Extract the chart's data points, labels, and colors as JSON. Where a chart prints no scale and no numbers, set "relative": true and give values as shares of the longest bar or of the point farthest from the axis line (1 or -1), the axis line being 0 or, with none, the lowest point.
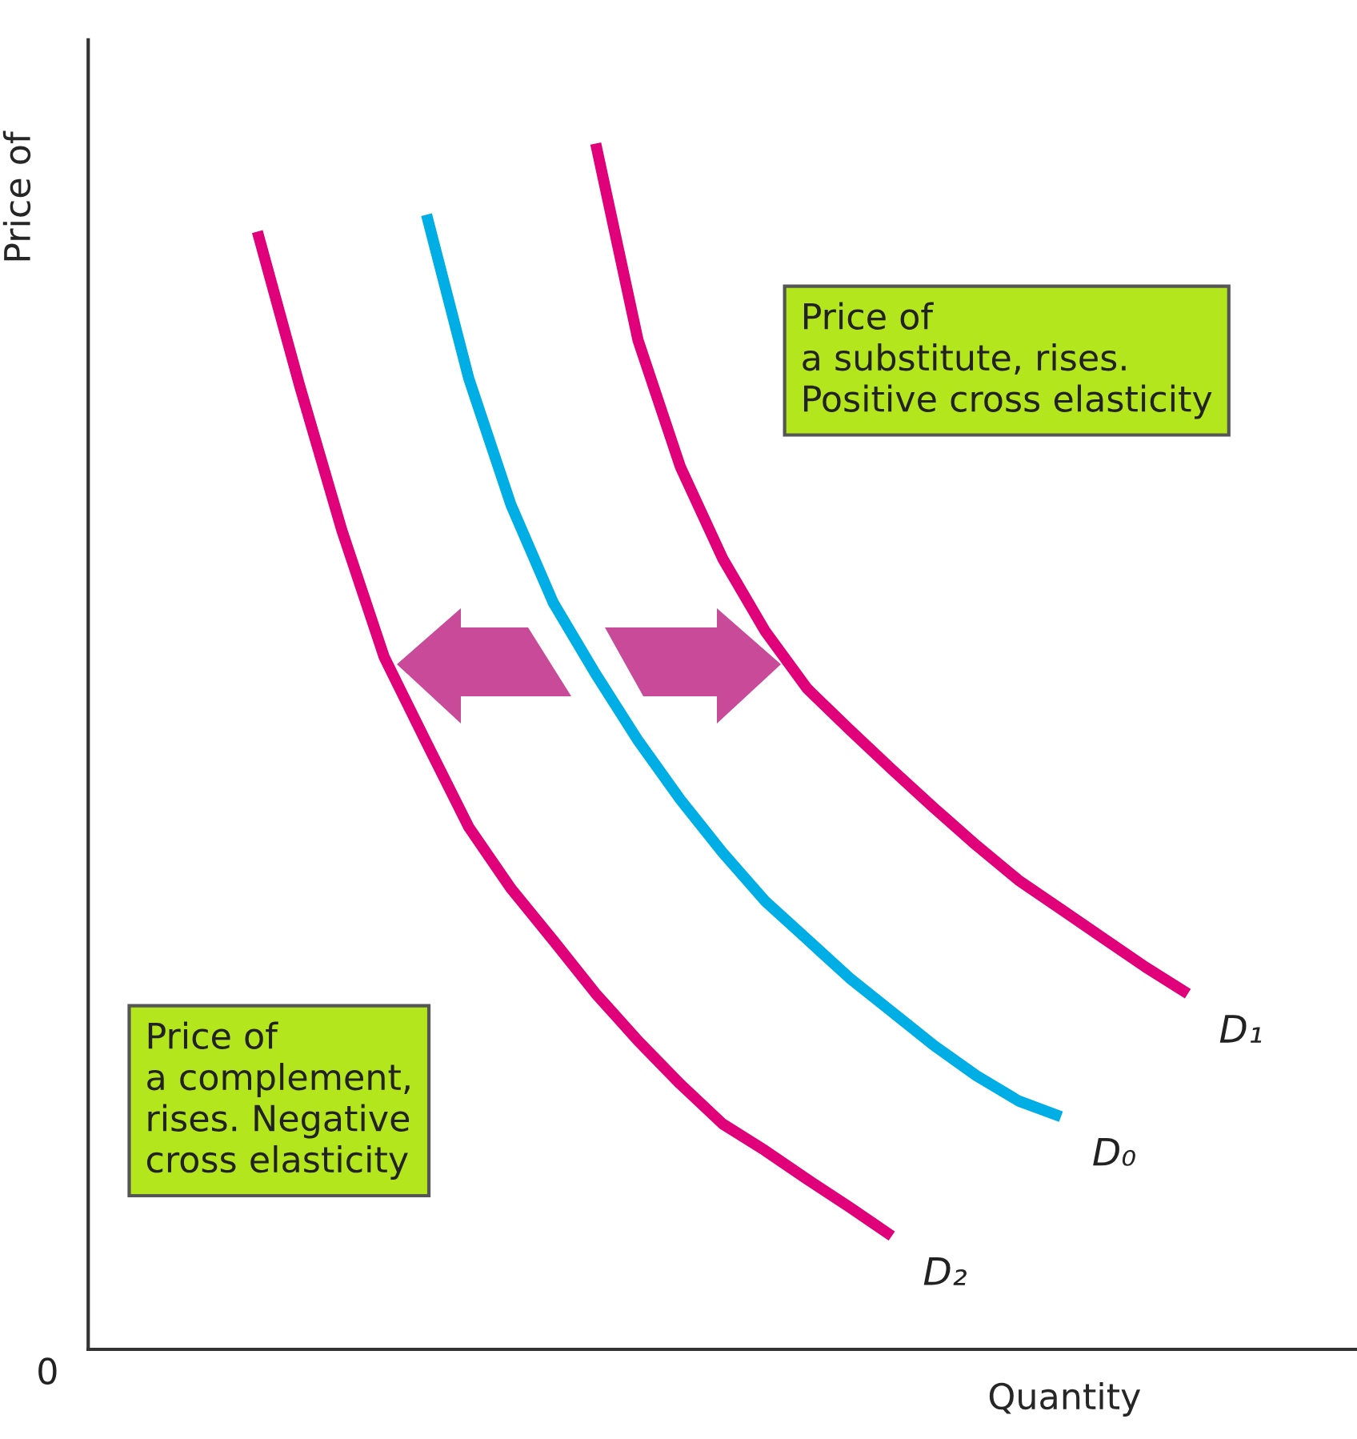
{
  "chart_data": {
    "type": "line",
    "relative": true,
    "xlabel": "Quantity",
    "ylabel": "Price of",
    "legend": false,
    "marker": "none",
    "line_style": "solid",
    "categories": [
      null,
      null,
      null,
      null,
      null,
      null,
      null,
      null,
      null,
      null,
      null,
      null,
      null,
      null,
      null,
      null,
      null,
      null,
      null,
      null,
      null,
      null,
      null,
      null,
      null,
      null,
      null,
      null,
      null,
      null
    ],
    "series": [
      {
        "name": "D₂",
        "color": "#e0007a",
        "values": [
          null,
          null,
          null,
          null,
          0.927,
          0.799,
          0.679,
          0.574,
          0.503,
          0.433,
          0.382,
          0.339,
          0.295,
          0.256,
          0.22,
          0.187,
          0.165,
          0.141,
          0.118,
          0.094,
          null,
          null,
          null,
          null,
          null,
          null,
          null,
          null,
          null,
          null
        ]
      },
      {
        "name": "D₀",
        "color": "#00aee6",
        "values": [
          null,
          null,
          null,
          null,
          null,
          null,
          null,
          null,
          0.941,
          0.805,
          0.7,
          0.619,
          0.56,
          0.505,
          0.456,
          0.412,
          0.372,
          0.34,
          0.308,
          0.28,
          0.252,
          0.227,
          0.206,
          0.193,
          null,
          null,
          null,
          null,
          null,
          null
        ]
      },
      {
        "name": "D₁",
        "color": "#e0007a",
        "values": [
          null,
          null,
          null,
          null,
          null,
          null,
          null,
          null,
          null,
          null,
          null,
          null,
          1.0,
          0.837,
          0.732,
          0.656,
          0.596,
          0.548,
          0.514,
          0.481,
          0.449,
          0.418,
          0.389,
          0.365,
          0.341,
          0.317,
          0.295,
          null,
          null,
          null
        ]
      }
    ],
    "annotations": [
      "Price of\na substitute, rises.\nPositive cross elasticity",
      "Price of\na complement,\nrises. Negative\ncross elasticity",
      "0"
    ]
  }
}
